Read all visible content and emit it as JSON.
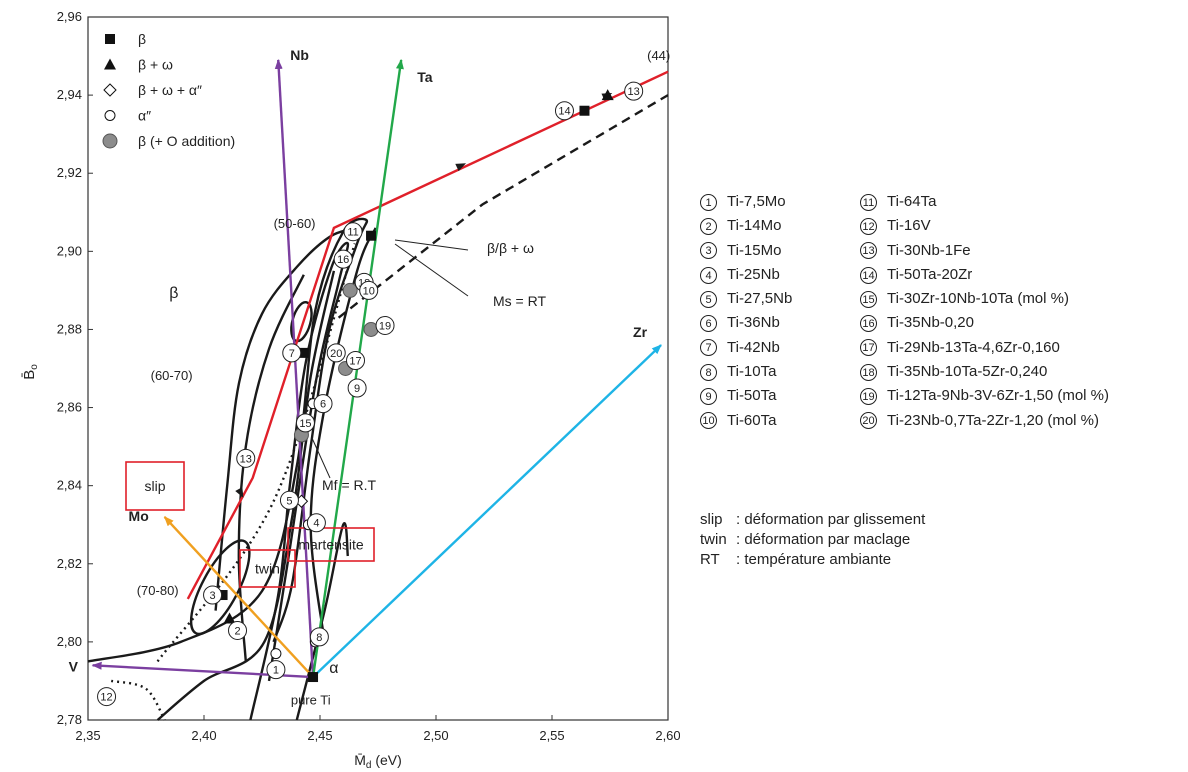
{
  "chart_data": {
    "type": "scatter",
    "xlabel": "M̄d (eV)",
    "ylabel": "B̄o",
    "xlim": [
      2.35,
      2.6
    ],
    "ylim": [
      2.78,
      2.96
    ],
    "xticks": [
      "2,35",
      "2,40",
      "2,45",
      "2,50",
      "2,55",
      "2,60"
    ],
    "yticks": [
      "2,78",
      "2,80",
      "2,82",
      "2,84",
      "2,86",
      "2,88",
      "2,90",
      "2,92",
      "2,94",
      "2,96"
    ],
    "legend": {
      "placement": "top-left",
      "entries": [
        {
          "symbol": "square",
          "label": "β"
        },
        {
          "symbol": "triangle",
          "label": "β + ω"
        },
        {
          "symbol": "diamond",
          "label": "β + ω + α″"
        },
        {
          "symbol": "circle-open",
          "label": "α″"
        },
        {
          "symbol": "circle-gray",
          "label": "β (+ O addition)"
        }
      ]
    },
    "vectors": [
      {
        "label": "Nb",
        "from": [
          2.447,
          2.791
        ],
        "to": [
          2.432,
          2.949
        ],
        "color": "#7b3fa0"
      },
      {
        "label": "Ta",
        "from": [
          2.447,
          2.791
        ],
        "to": [
          2.485,
          2.949
        ],
        "color": "#22a84a"
      },
      {
        "label": "Zr",
        "from": [
          2.447,
          2.791
        ],
        "to": [
          2.597,
          2.876
        ],
        "color": "#1eb4e6"
      },
      {
        "label": "Mo",
        "from": [
          2.447,
          2.791
        ],
        "to": [
          2.383,
          2.832
        ],
        "color": "#f0a020"
      },
      {
        "label": "V",
        "from": [
          2.447,
          2.791
        ],
        "to": [
          2.352,
          2.794
        ],
        "color": "#7b3fa0"
      }
    ],
    "boundaries": [
      {
        "label": "β/β + ω",
        "style": "solid-red",
        "x": [
          2.393,
          2.421,
          2.456,
          2.6
        ],
        "y": [
          2.811,
          2.842,
          2.906,
          2.946
        ]
      },
      {
        "label": "Ms = RT",
        "style": "dashed",
        "x": [
          2.458,
          2.52,
          2.6
        ],
        "y": [
          2.883,
          2.912,
          2.94
        ]
      },
      {
        "label": "Mf = R.T",
        "style": "dotted",
        "x": [
          2.38,
          2.43,
          2.465
        ],
        "y": [
          2.795,
          2.836,
          2.902
        ]
      }
    ],
    "points": [
      {
        "id": "1",
        "x": 2.431,
        "y": 2.797,
        "marker": "circle-open"
      },
      {
        "id": "2",
        "x": 2.411,
        "y": 2.806,
        "marker": "triangle"
      },
      {
        "id": "3",
        "x": 2.408,
        "y": 2.812,
        "marker": "square"
      },
      {
        "id": "4",
        "x": 2.445,
        "y": 2.83,
        "marker": "circle-open"
      },
      {
        "id": "5",
        "x": 2.442,
        "y": 2.836,
        "marker": "diamond"
      },
      {
        "id": "6",
        "x": 2.447,
        "y": 2.861,
        "marker": "circle-open"
      },
      {
        "id": "7",
        "x": 2.443,
        "y": 2.874,
        "marker": "square"
      },
      {
        "id": "8",
        "x": 2.448,
        "y": 2.8,
        "marker": "circle-open"
      },
      {
        "id": "11",
        "x": 2.472,
        "y": 2.904,
        "marker": "square"
      },
      {
        "id": "13",
        "x": 2.574,
        "y": 2.94,
        "marker": "triangle"
      },
      {
        "id": "14",
        "x": 2.564,
        "y": 2.936,
        "marker": "square"
      },
      {
        "id": "15",
        "x": 2.442,
        "y": 2.853,
        "marker": "circle-gray"
      },
      {
        "id": "17",
        "x": 2.461,
        "y": 2.87,
        "marker": "circle-gray"
      },
      {
        "id": "18",
        "x": 2.463,
        "y": 2.89,
        "marker": "circle-gray"
      },
      {
        "id": "19",
        "x": 2.472,
        "y": 2.88,
        "marker": "circle-gray"
      },
      {
        "id": "pure Ti",
        "x": 2.447,
        "y": 2.791,
        "marker": "square"
      }
    ],
    "labels": [
      {
        "text": "(44)",
        "x": 2.591,
        "y": 2.949
      },
      {
        "text": "(50-60)",
        "x": 2.43,
        "y": 2.906
      },
      {
        "text": "β",
        "x": 2.385,
        "y": 2.888
      },
      {
        "text": "(60-70)",
        "x": 2.377,
        "y": 2.867
      },
      {
        "text": "(70-80)",
        "x": 2.371,
        "y": 2.812
      },
      {
        "text": "α",
        "x": 2.454,
        "y": 2.792
      },
      {
        "text": "pure Ti",
        "x": 2.446,
        "y": 2.784
      },
      {
        "text": "slip",
        "x": 2.372,
        "y": 2.839
      },
      {
        "text": "twin",
        "x": 2.424,
        "y": 2.818
      },
      {
        "text": "martensite",
        "x": 2.458,
        "y": 2.826
      }
    ]
  },
  "alloys": [
    {
      "id": "1",
      "name": "Ti-7,5Mo"
    },
    {
      "id": "2",
      "name": "Ti-14Mo"
    },
    {
      "id": "3",
      "name": "Ti-15Mo"
    },
    {
      "id": "4",
      "name": "Ti-25Nb"
    },
    {
      "id": "5",
      "name": "Ti-27,5Nb"
    },
    {
      "id": "6",
      "name": "Ti-36Nb"
    },
    {
      "id": "7",
      "name": "Ti-42Nb"
    },
    {
      "id": "8",
      "name": "Ti-10Ta"
    },
    {
      "id": "9",
      "name": "Ti-50Ta"
    },
    {
      "id": "10",
      "name": "Ti-60Ta"
    },
    {
      "id": "11",
      "name": "Ti-64Ta"
    },
    {
      "id": "12",
      "name": "Ti-16V"
    },
    {
      "id": "13",
      "name": "Ti-30Nb-1Fe"
    },
    {
      "id": "14",
      "name": "Ti-50Ta-20Zr"
    },
    {
      "id": "15",
      "name": "Ti-30Zr-10Nb-10Ta (mol %)"
    },
    {
      "id": "16",
      "name": "Ti-35Nb-0,20"
    },
    {
      "id": "17",
      "name": "Ti-29Nb-13Ta-4,6Zr-0,160"
    },
    {
      "id": "18",
      "name": "Ti-35Nb-10Ta-5Zr-0,240"
    },
    {
      "id": "19",
      "name": "Ti-12Ta-9Nb-3V-6Zr-1,50 (mol %)"
    },
    {
      "id": "20",
      "name": "Ti-23Nb-0,7Ta-2Zr-1,20 (mol %)"
    }
  ],
  "notes": [
    {
      "key": "slip",
      "text": ": déformation par glissement"
    },
    {
      "key": "twin",
      "text": ": déformation par maclage"
    },
    {
      "key": "RT",
      "text": ": température ambiante"
    }
  ],
  "colors": {
    "red": "#e0202a",
    "purple": "#7b3fa0",
    "green": "#22a84a",
    "cyan": "#1eb4e6",
    "orange": "#f0a020"
  }
}
